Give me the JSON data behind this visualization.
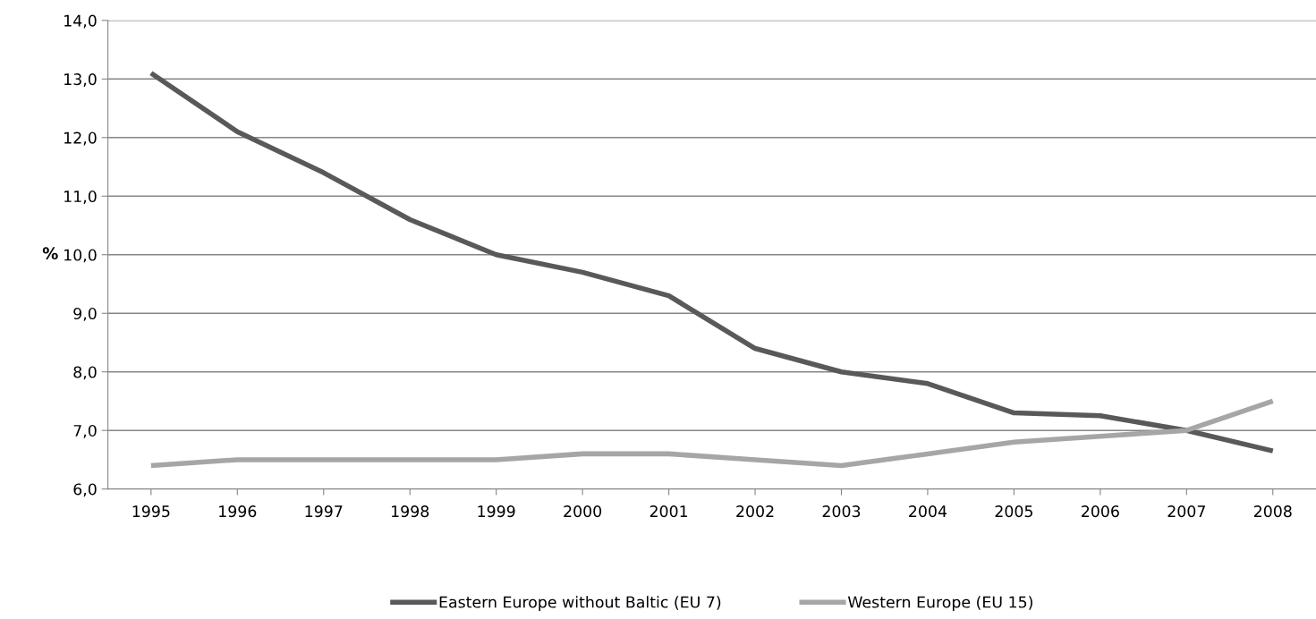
{
  "chart_data": {
    "type": "line",
    "ylabel": "%",
    "categories": [
      "1995",
      "1996",
      "1997",
      "1998",
      "1999",
      "2000",
      "2001",
      "2002",
      "2003",
      "2004",
      "2005",
      "2006",
      "2007",
      "2008"
    ],
    "series": [
      {
        "name": "Eastern Europe without Baltic (EU 7)",
        "color": "#595959",
        "values": [
          13.1,
          12.1,
          11.4,
          10.6,
          10.0,
          9.7,
          9.3,
          8.4,
          8.0,
          7.8,
          7.3,
          7.25,
          7.0,
          6.65
        ]
      },
      {
        "name": "Western Europe (EU 15)",
        "color": "#a6a6a6",
        "values": [
          6.4,
          6.5,
          6.5,
          6.5,
          6.5,
          6.6,
          6.6,
          6.5,
          6.4,
          6.6,
          6.8,
          6.9,
          7.0,
          7.5
        ]
      }
    ],
    "ylim": [
      6,
      14
    ],
    "yticks": [
      {
        "value": 6,
        "label": "6,0"
      },
      {
        "value": 7,
        "label": "7,0"
      },
      {
        "value": 8,
        "label": "8,0"
      },
      {
        "value": 9,
        "label": "9,0"
      },
      {
        "value": 10,
        "label": "10,0"
      },
      {
        "value": 11,
        "label": "11,0"
      },
      {
        "value": 12,
        "label": "12,0"
      },
      {
        "value": 13,
        "label": "13,0"
      },
      {
        "value": 14,
        "label": "14,0"
      }
    ],
    "grid": "y",
    "legend": "bottom",
    "marker": "none",
    "line_style": "solid"
  }
}
